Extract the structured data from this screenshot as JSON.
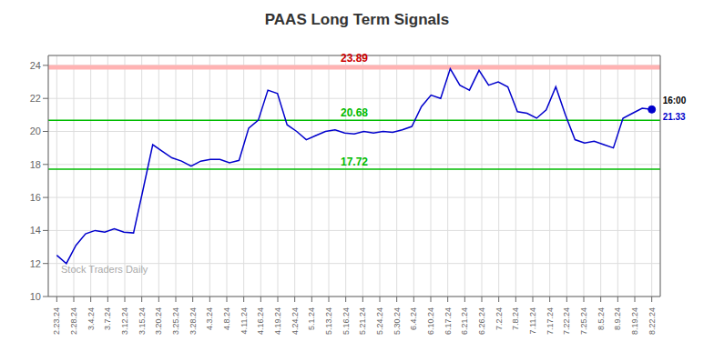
{
  "chart_data": {
    "type": "line",
    "title": "PAAS Long Term Signals",
    "color": "#0000cc",
    "grid": true,
    "x": [
      0,
      0.5645,
      1.129,
      1.6935,
      2.2581,
      2.8226,
      3.3871,
      3.9516,
      4.5161,
      5.0806,
      5.6452,
      6.2097,
      6.7742,
      7.3387,
      7.9032,
      8.4677,
      9.0323,
      9.5968,
      10.1613,
      10.7258,
      11.2903,
      11.8548,
      12.4194,
      12.9839,
      13.5484,
      14.1129,
      14.6774,
      15.2419,
      15.8065,
      16.371,
      16.9355,
      17.5,
      18.0645,
      18.629,
      19.1935,
      19.7581,
      20.3226,
      20.8871,
      21.4516,
      22.0161,
      22.5806,
      23.1452,
      23.7097,
      24.2742,
      24.8387,
      25.4032,
      25.9677,
      26.5323,
      27.0968,
      27.6613,
      28.2258,
      28.7903,
      29.3548,
      29.9194,
      30.4839,
      31.0484,
      31.6129,
      32.1774,
      32.7419,
      33.3065,
      33.871,
      34.4355,
      35
    ],
    "values": [
      12.5,
      12.0,
      13.1,
      13.8,
      14.0,
      13.9,
      14.1,
      13.9,
      13.85,
      16.5,
      19.2,
      18.8,
      18.4,
      18.2,
      17.9,
      18.2,
      18.3,
      18.3,
      18.1,
      18.25,
      20.2,
      20.68,
      22.5,
      22.3,
      20.4,
      20.0,
      19.5,
      19.75,
      20.0,
      20.1,
      19.9,
      19.85,
      20.0,
      19.9,
      20.0,
      19.95,
      20.1,
      20.3,
      21.5,
      22.2,
      22.0,
      23.8,
      22.8,
      22.5,
      23.7,
      22.8,
      23.0,
      22.7,
      21.2,
      21.1,
      20.8,
      21.3,
      22.7,
      21.0,
      19.5,
      19.3,
      19.4,
      19.2,
      19.0,
      20.8,
      21.1,
      21.4,
      21.33
    ],
    "xlim": [
      -0.5,
      35.5
    ],
    "xticks": [
      {
        "value": 0,
        "label": "2.23.24"
      },
      {
        "value": 1,
        "label": "2.28.24"
      },
      {
        "value": 2,
        "label": "3.4.24"
      },
      {
        "value": 3,
        "label": "3.7.24"
      },
      {
        "value": 4,
        "label": "3.12.24"
      },
      {
        "value": 5,
        "label": "3.15.24"
      },
      {
        "value": 6,
        "label": "3.20.24"
      },
      {
        "value": 7,
        "label": "3.25.24"
      },
      {
        "value": 8,
        "label": "3.28.24"
      },
      {
        "value": 9,
        "label": "4.3.24"
      },
      {
        "value": 10,
        "label": "4.8.24"
      },
      {
        "value": 11,
        "label": "4.11.24"
      },
      {
        "value": 12,
        "label": "4.16.24"
      },
      {
        "value": 13,
        "label": "4.19.24"
      },
      {
        "value": 14,
        "label": "4.24.24"
      },
      {
        "value": 15,
        "label": "5.1.24"
      },
      {
        "value": 16,
        "label": "5.13.24"
      },
      {
        "value": 17,
        "label": "5.16.24"
      },
      {
        "value": 18,
        "label": "5.21.24"
      },
      {
        "value": 19,
        "label": "5.24.24"
      },
      {
        "value": 20,
        "label": "5.30.24"
      },
      {
        "value": 21,
        "label": "6.4.24"
      },
      {
        "value": 22,
        "label": "6.10.24"
      },
      {
        "value": 23,
        "label": "6.17.24"
      },
      {
        "value": 24,
        "label": "6.21.24"
      },
      {
        "value": 25,
        "label": "6.26.24"
      },
      {
        "value": 26,
        "label": "7.2.24"
      },
      {
        "value": 27,
        "label": "7.8.24"
      },
      {
        "value": 28,
        "label": "7.11.24"
      },
      {
        "value": 29,
        "label": "7.17.24"
      },
      {
        "value": 30,
        "label": "7.22.24"
      },
      {
        "value": 31,
        "label": "7.25.24"
      },
      {
        "value": 32,
        "label": "8.5.24"
      },
      {
        "value": 33,
        "label": "8.9.24"
      },
      {
        "value": 34,
        "label": "8.19.24"
      },
      {
        "value": 35,
        "label": "8.22.24"
      }
    ],
    "ylim": [
      10,
      24.6
    ],
    "yticks": [
      10,
      12,
      14,
      16,
      18,
      20,
      22,
      24
    ],
    "reference_lines": [
      {
        "value": 23.89,
        "color": "#ffb3b3",
        "label_color": "#cc0000"
      },
      {
        "value": 20.68,
        "color": "#00bb00",
        "label_color": "#00bb00"
      },
      {
        "value": 17.72,
        "color": "#00bb00",
        "label_color": "#00bb00"
      }
    ],
    "last_price": {
      "time": "16:00",
      "value": 21.33,
      "color": "#0000cc"
    },
    "watermark": "Stock Traders Daily",
    "watermark_color": "#aaaaaa"
  }
}
